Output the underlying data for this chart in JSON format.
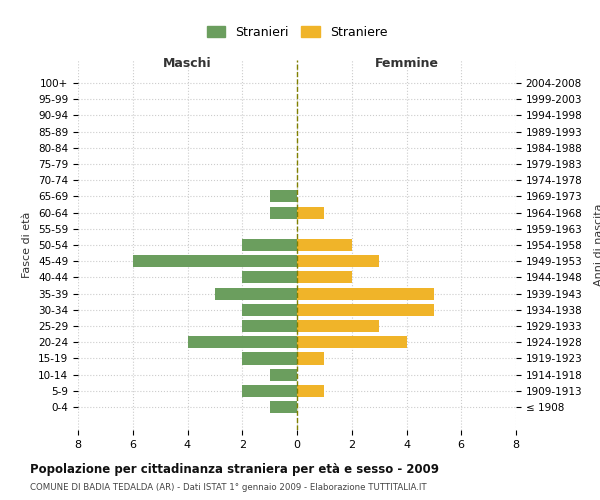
{
  "age_groups": [
    "100+",
    "95-99",
    "90-94",
    "85-89",
    "80-84",
    "75-79",
    "70-74",
    "65-69",
    "60-64",
    "55-59",
    "50-54",
    "45-49",
    "40-44",
    "35-39",
    "30-34",
    "25-29",
    "20-24",
    "15-19",
    "10-14",
    "5-9",
    "0-4"
  ],
  "birth_years": [
    "≤ 1908",
    "1909-1913",
    "1914-1918",
    "1919-1923",
    "1924-1928",
    "1929-1933",
    "1934-1938",
    "1939-1943",
    "1944-1948",
    "1949-1953",
    "1954-1958",
    "1959-1963",
    "1964-1968",
    "1969-1973",
    "1974-1978",
    "1979-1983",
    "1984-1988",
    "1989-1993",
    "1994-1998",
    "1999-2003",
    "2004-2008"
  ],
  "maschi": [
    0,
    0,
    0,
    0,
    0,
    0,
    0,
    1,
    1,
    0,
    2,
    6,
    2,
    3,
    2,
    2,
    4,
    2,
    1,
    2,
    1
  ],
  "femmine": [
    0,
    0,
    0,
    0,
    0,
    0,
    0,
    0,
    1,
    0,
    2,
    3,
    2,
    5,
    5,
    3,
    4,
    1,
    0,
    1,
    0
  ],
  "maschi_color": "#6B9E5E",
  "femmine_color": "#F0B429",
  "background_color": "#ffffff",
  "grid_color": "#cccccc",
  "title": "Popolazione per cittadinanza straniera per età e sesso - 2009",
  "subtitle": "COMUNE DI BADIA TEDALDA (AR) - Dati ISTAT 1° gennaio 2009 - Elaborazione TUTTITALIA.IT",
  "xlabel_left": "Maschi",
  "xlabel_right": "Femmine",
  "ylabel_left": "Fasce di età",
  "ylabel_right": "Anni di nascita",
  "legend_maschi": "Stranieri",
  "legend_femmine": "Straniere",
  "xlim": 8
}
